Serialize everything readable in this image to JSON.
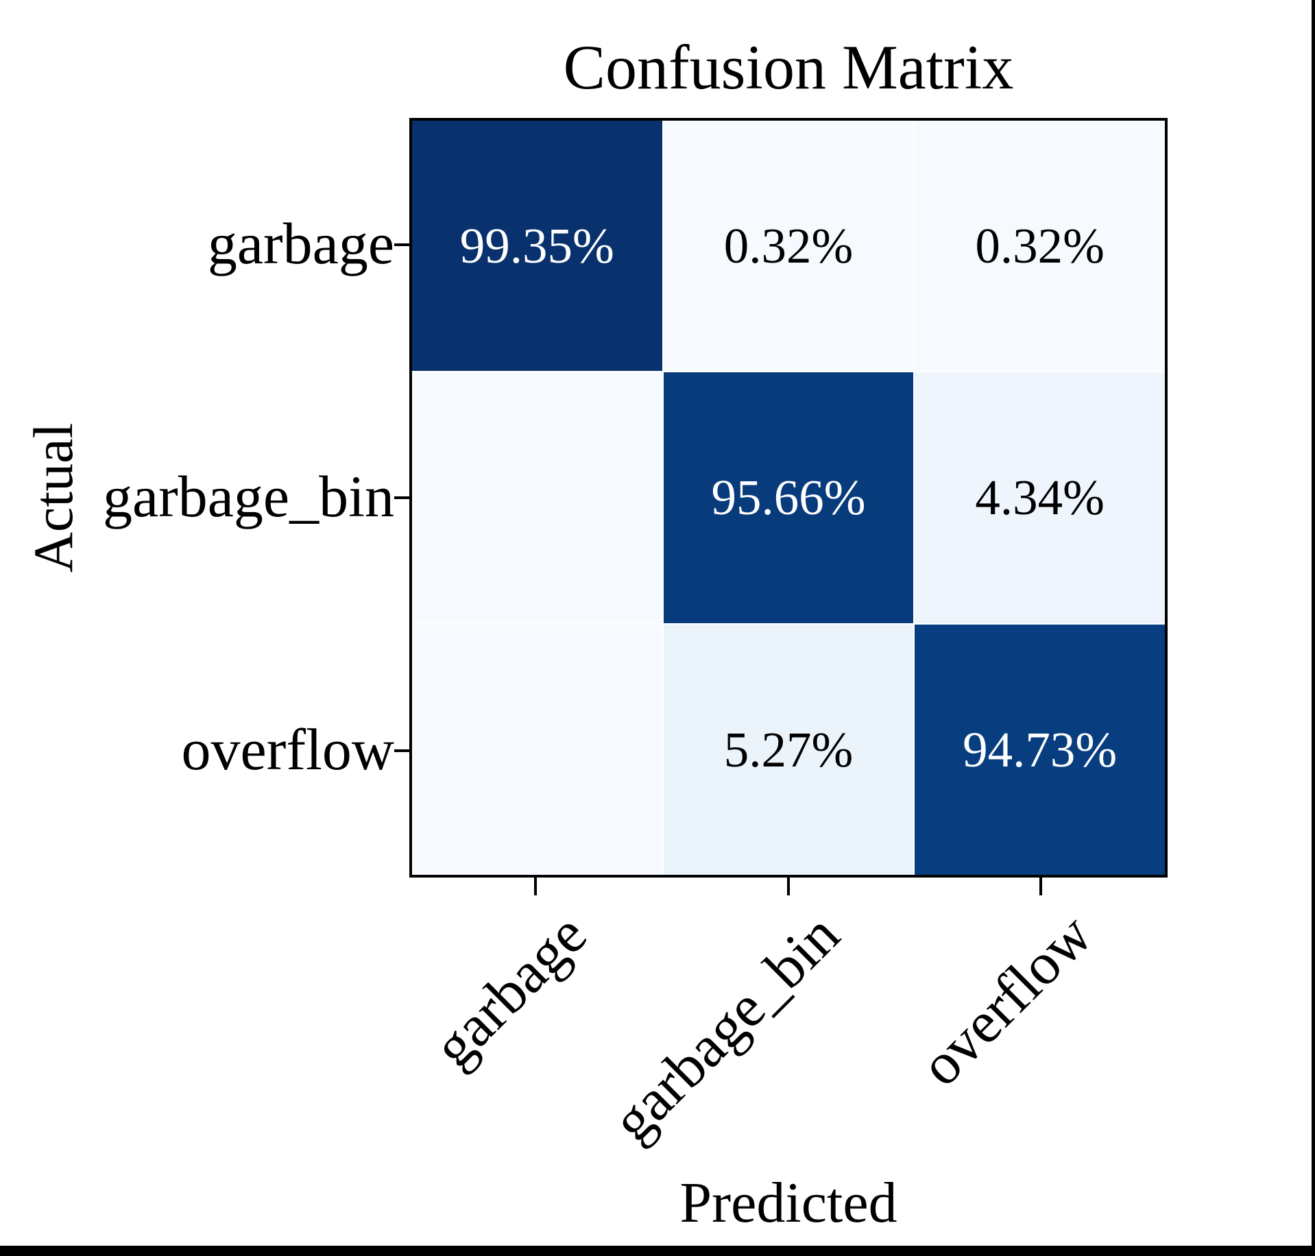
{
  "chart_data": {
    "type": "heatmap",
    "title": "Confusion Matrix",
    "xlabel": "Predicted",
    "ylabel": "Actual",
    "x_categories": [
      "garbage",
      "garbage_bin",
      "overflow"
    ],
    "y_categories": [
      "garbage",
      "garbage_bin",
      "overflow"
    ],
    "values_percent": [
      [
        99.35,
        0.32,
        0.32
      ],
      [
        0.0,
        95.66,
        4.34
      ],
      [
        0.0,
        5.27,
        94.73
      ]
    ],
    "cell_labels": [
      [
        "99.35%",
        "0.32%",
        "0.32%"
      ],
      [
        "",
        "95.66%",
        "4.34%"
      ],
      [
        "",
        "5.27%",
        "94.73%"
      ]
    ],
    "cell_colors": [
      [
        "#08316d",
        "#f6fafe",
        "#f6fafe"
      ],
      [
        "#f7fbff",
        "#083b7c",
        "#eef5fc"
      ],
      [
        "#f7fbff",
        "#ecf4fb",
        "#083e80"
      ]
    ],
    "cell_text_colors": [
      [
        "#ffffff",
        "#000000",
        "#000000"
      ],
      [
        "#000000",
        "#ffffff",
        "#000000"
      ],
      [
        "#000000",
        "#000000",
        "#ffffff"
      ]
    ],
    "colormap": "Blues",
    "value_range": [
      0,
      100
    ],
    "grid": "white-lines-between-cells",
    "legend_position": "none",
    "x_tick_rotation_deg": 45,
    "axis_border_color": "#000000",
    "gridline_color": "#ffffff"
  },
  "frame": {
    "bottom_bar_color": "#000000",
    "right_bar_color": "#000000",
    "background_color": "#ffffff"
  }
}
